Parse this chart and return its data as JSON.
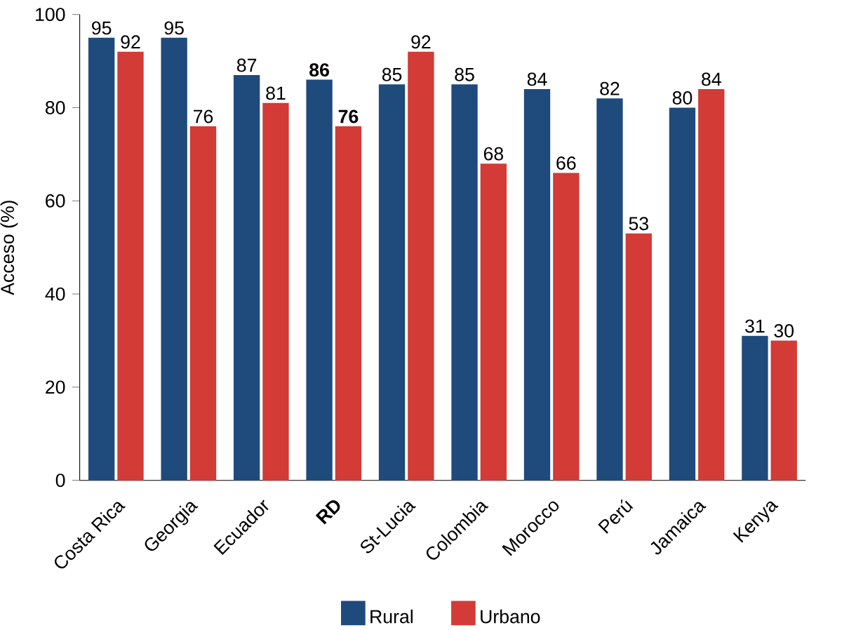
{
  "chart_data": {
    "type": "bar",
    "ylabel": "Acceso (%)",
    "categories": [
      "Costa Rica",
      "Georgia",
      "Ecuador",
      "**RD**",
      "St-Lucia",
      "Colombia",
      "Morocco",
      "Perú",
      "Jamaica",
      "Kenya"
    ],
    "series": [
      {
        "name": "Rural",
        "color": "#1f4a7c",
        "values": [
          95,
          95,
          87,
          86,
          85,
          85,
          84,
          82,
          80,
          31
        ],
        "value_labels": [
          "95",
          "95",
          "87",
          "**86**",
          "85",
          "85",
          "84",
          "82",
          "80",
          "31"
        ]
      },
      {
        "name": "Urbano",
        "color": "#d23b36",
        "values": [
          92,
          76,
          81,
          76,
          92,
          68,
          66,
          53,
          84,
          30
        ],
        "value_labels": [
          "92",
          "76",
          "81",
          "**76**",
          "92",
          "68",
          "66",
          "53",
          "84",
          "30"
        ]
      }
    ],
    "ylim": [
      0,
      100
    ],
    "yticks": [
      0,
      20,
      40,
      60,
      80,
      100
    ],
    "grid": false,
    "legend": "bottom"
  }
}
